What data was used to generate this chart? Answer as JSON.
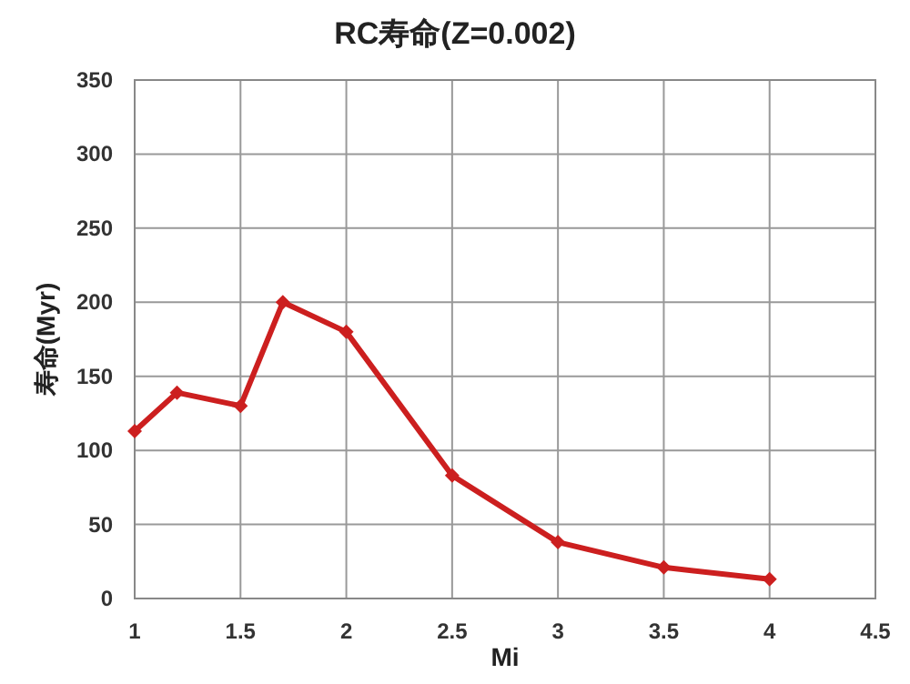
{
  "chart_data": {
    "type": "line",
    "title": "RC寿命(Z=0.002)",
    "xlabel": "Mi",
    "ylabel": "寿命(Myr)",
    "x": [
      1,
      1.2,
      1.5,
      1.7,
      2,
      2.5,
      3,
      3.5,
      4
    ],
    "series": [
      {
        "color": "#cc1f1f",
        "values": [
          113,
          139,
          130,
          200,
          180,
          83,
          38,
          21,
          13
        ]
      }
    ],
    "xlim": [
      1,
      4.5
    ],
    "xticks": [
      1,
      1.5,
      2,
      2.5,
      3,
      3.5,
      4,
      4.5
    ],
    "ylim": [
      0,
      350
    ],
    "yticks": [
      0,
      50,
      100,
      150,
      200,
      250,
      300,
      350
    ],
    "grid": true,
    "marker": "diamond",
    "line_style": "solid"
  }
}
